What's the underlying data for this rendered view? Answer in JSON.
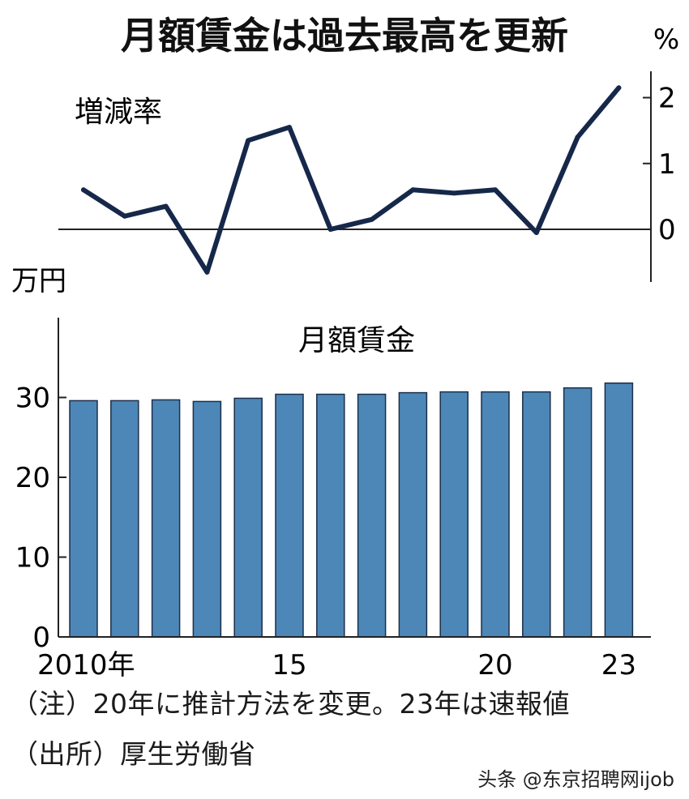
{
  "title": "月額賃金は過去最高を更新",
  "chart_data": [
    {
      "type": "line",
      "title": "増減率",
      "ylabel": "%",
      "ylim": [
        -0.8,
        2.4
      ],
      "yticks": [
        "2",
        "1",
        "0"
      ],
      "x": [
        2010,
        2011,
        2012,
        2013,
        2014,
        2015,
        2016,
        2017,
        2018,
        2019,
        2020,
        2021,
        2022,
        2023
      ],
      "series": [
        {
          "values": [
            0.6,
            0.2,
            0.35,
            -0.65,
            1.35,
            1.55,
            0.0,
            0.15,
            0.6,
            0.55,
            0.6,
            -0.05,
            1.4,
            2.15
          ]
        }
      ],
      "zero_line": true
    },
    {
      "type": "bar",
      "title": "月額賃金",
      "ylabel": "万円",
      "ylim": [
        0,
        40
      ],
      "yticks": [
        "30",
        "20",
        "10",
        "0"
      ],
      "categories": [
        "2010年",
        "",
        "",
        "",
        "",
        "15",
        "",
        "",
        "",
        "",
        "20",
        "",
        "",
        "23"
      ],
      "values": [
        29.6,
        29.6,
        29.7,
        29.5,
        29.9,
        30.4,
        30.4,
        30.4,
        30.6,
        30.7,
        30.7,
        30.7,
        31.2,
        31.8
      ],
      "bar_color": "#4d87b7",
      "bar_stroke": "#1b2f4a"
    }
  ],
  "notes": [
    "（注）20年に推計方法を変更。23年は速報値",
    "（出所）厚生労働省"
  ],
  "watermark": "头条 @东京招聘网ijob",
  "colors": {
    "line": "#16284a",
    "text": "#1a1a1a"
  }
}
